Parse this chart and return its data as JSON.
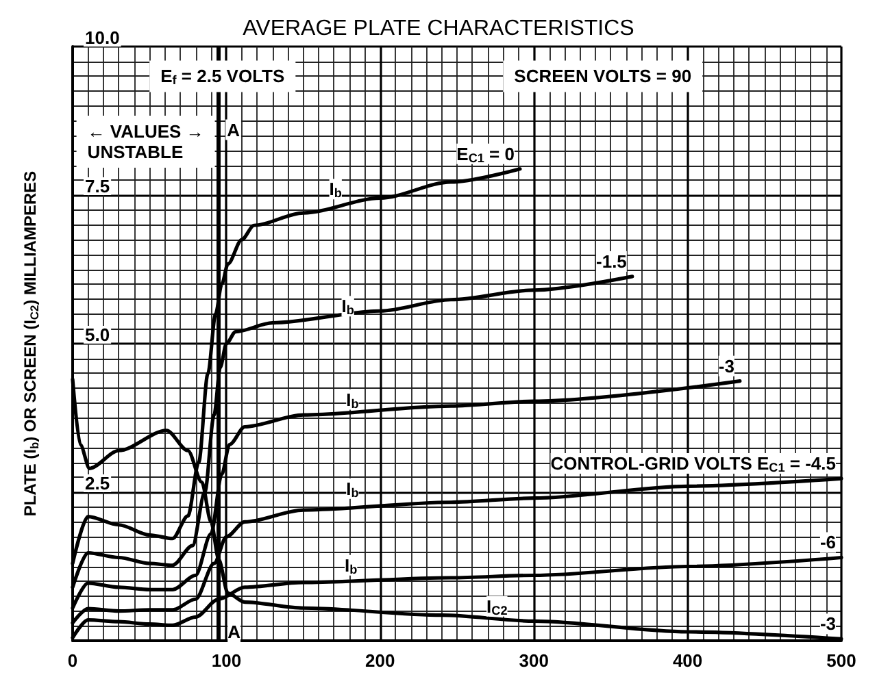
{
  "chart_data": {
    "type": "line",
    "title": "AVERAGE PLATE CHARACTERISTICS",
    "ylabel": "PLATE (I$_{b}$) OR SCREEN (I$_{C2}$) MILLIAMPERES",
    "xlim": [
      0,
      500
    ],
    "xticks": [
      0,
      100,
      200,
      300,
      400,
      500
    ],
    "ylim": [
      0,
      10
    ],
    "yticks": [
      {
        "value": 0,
        "label": null
      },
      2.5,
      {
        "value": 5,
        "label": "5.0"
      },
      7.5,
      {
        "value": 10,
        "label": "10.0"
      }
    ],
    "grid": true,
    "marker": "none",
    "line_style": "solid",
    "series": [
      {
        "name": "E$_{C1}$ = 0",
        "color": "#000000",
        "x": [
          0,
          10,
          30,
          50,
          65,
          75,
          82,
          88,
          93,
          97,
          101,
          110,
          118,
          150,
          200,
          246,
          291
        ],
        "values": [
          1.3,
          2.09,
          1.95,
          1.78,
          1.72,
          2.1,
          3.0,
          4.5,
          5.5,
          6.0,
          6.34,
          6.75,
          6.99,
          7.2,
          7.45,
          7.72,
          7.94
        ]
      },
      {
        "name": "-1.5",
        "color": "#000000",
        "x": [
          0,
          10,
          30,
          50,
          65,
          78,
          86,
          92,
          96,
          100,
          106,
          130,
          200,
          246,
          300,
          364
        ],
        "values": [
          0.9,
          1.48,
          1.4,
          1.3,
          1.27,
          1.6,
          2.5,
          3.8,
          4.6,
          5.0,
          5.2,
          5.35,
          5.55,
          5.74,
          5.9,
          6.13
        ]
      },
      {
        "name": "-3",
        "color": "#000000",
        "x": [
          0,
          10,
          30,
          50,
          65,
          80,
          90,
          97,
          102,
          112,
          150,
          246,
          300,
          434
        ],
        "values": [
          0.55,
          0.97,
          0.9,
          0.86,
          0.86,
          1.1,
          1.8,
          2.8,
          3.3,
          3.6,
          3.8,
          3.95,
          4.03,
          4.37
        ]
      },
      {
        "name": "CONTROL-GRID VOLTS E$_{C1}$ = -4.5",
        "color": "#000000",
        "x": [
          0,
          10,
          30,
          50,
          65,
          80,
          92,
          100,
          112,
          150,
          246,
          300,
          400,
          500
        ],
        "values": [
          0.3,
          0.54,
          0.5,
          0.52,
          0.52,
          0.7,
          1.3,
          1.75,
          2.0,
          2.2,
          2.33,
          2.4,
          2.6,
          2.73
        ]
      },
      {
        "name": "-6",
        "color": "#000000",
        "x": [
          0,
          10,
          30,
          50,
          65,
          80,
          95,
          112,
          150,
          246,
          300,
          400,
          500
        ],
        "values": [
          0.05,
          0.35,
          0.32,
          0.28,
          0.26,
          0.4,
          0.7,
          0.9,
          0.98,
          1.06,
          1.1,
          1.25,
          1.4
        ]
      },
      {
        "name": "-3",
        "color": "#000000",
        "x": [
          0,
          5,
          11,
          30,
          61,
          75,
          84,
          90,
          95,
          101,
          112,
          150,
          240,
          300,
          400,
          500
        ],
        "values": [
          4.4,
          3.3,
          2.9,
          3.2,
          3.54,
          3.2,
          2.67,
          2.0,
          1.37,
          0.8,
          0.65,
          0.55,
          0.43,
          0.33,
          0.15,
          0.03
        ]
      }
    ],
    "ref_lines": [
      {
        "axis": "x",
        "value": 95,
        "label": "A",
        "color": "#000000"
      }
    ],
    "annotations": [
      "E$_{f}$ = 2.5 VOLTS",
      "SCREEN VOLTS = 90",
      "← VALUES →\nUNSTABLE",
      {
        "text": "A",
        "x": 105,
        "y": 0.15
      },
      {
        "text": "I$_{b}$",
        "x": 171,
        "y": 7.6
      },
      {
        "text": "I$_{b}$",
        "x": 179,
        "y": 5.63
      },
      {
        "text": "I$_{b}$",
        "x": 182,
        "y": 4.06
      },
      {
        "text": "I$_{b}$",
        "x": 182,
        "y": 2.56
      },
      {
        "text": "I$_{b}$",
        "x": 181,
        "y": 1.27
      },
      {
        "text": "I$_{C2}$",
        "x": 276,
        "y": 0.58
      }
    ]
  }
}
